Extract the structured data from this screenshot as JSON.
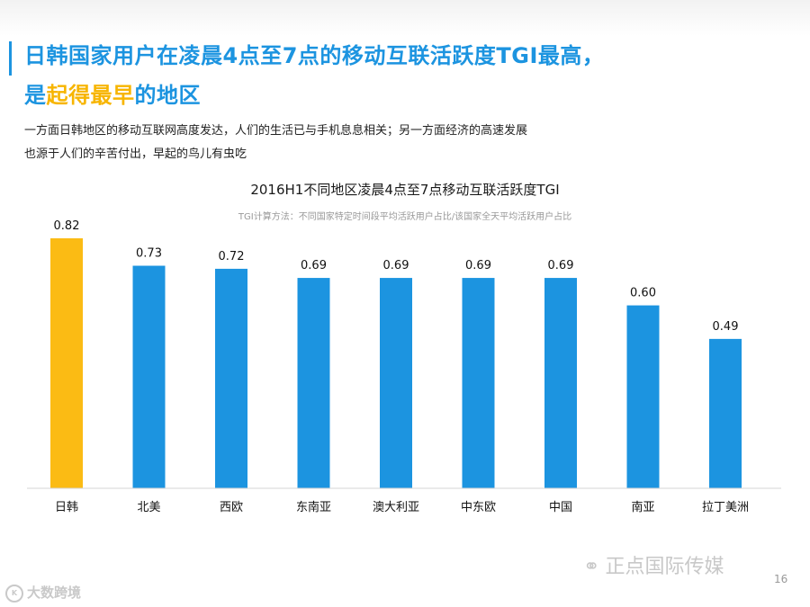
{
  "header": {
    "title_line1": "日韩国家用户在凌晨4点至7点的移动互联活跃度TGI最高，",
    "title_line2_prefix": "是",
    "title_line2_highlight": "起得最早",
    "title_line2_suffix": "的地区",
    "accent_color": "#1c94e0",
    "highlight_color": "#f7b500"
  },
  "body": {
    "line1": "一方面日韩地区的移动互联网高度发达，人们的生活已与手机息息相关；另一方面经济的高速发展",
    "line2": "也源于人们的辛苦付出，早起的鸟儿有虫吃"
  },
  "chart_data": {
    "type": "bar",
    "title": "2016H1不同地区凌晨4点至7点移动互联活跃度TGI",
    "subtitle": "TGI计算方法：不同国家特定时间段平均活跃用户占比/该国家全天平均活跃用户占比",
    "categories": [
      "日韩",
      "北美",
      "西欧",
      "东南亚",
      "澳大利亚",
      "中东欧",
      "中国",
      "南亚",
      "拉丁美洲"
    ],
    "values": [
      0.82,
      0.73,
      0.72,
      0.69,
      0.69,
      0.69,
      0.69,
      0.6,
      0.49
    ],
    "value_labels": [
      "0.82",
      "0.73",
      "0.72",
      "0.69",
      "0.69",
      "0.69",
      "0.69",
      "0.60",
      "0.49"
    ],
    "highlight_index": 0,
    "highlight_color": "#fbbb14",
    "bar_color": "#1c94e0",
    "ylim": [
      0,
      0.82
    ],
    "xlabel": "",
    "ylabel": "",
    "grid": false
  },
  "footer": {
    "brand": "正点国际传媒",
    "page_number": "16",
    "corner_logo": "大数跨境"
  }
}
